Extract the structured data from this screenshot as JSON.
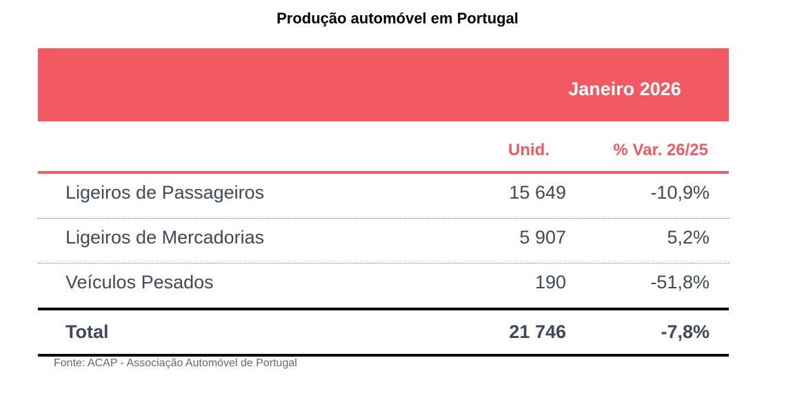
{
  "chart_data": {
    "type": "table",
    "title": "Produção automóvel em Portugal",
    "period": "Janeiro 2026",
    "columns": [
      "Unid.",
      "% Var. 26/25"
    ],
    "rows": [
      {
        "label": "Ligeiros de Passageiros",
        "unid": "15 649",
        "var": "-10,9%"
      },
      {
        "label": "Ligeiros de Mercadorias",
        "unid": "5 907",
        "var": "5,2%"
      },
      {
        "label": "Veículos Pesados",
        "unid": "190",
        "var": "-51,8%"
      }
    ],
    "total": {
      "label": "Total",
      "unid": "21 746",
      "var": "-7,8%"
    },
    "source": "Fonte: ACAP - Associação Automóvel de Portugal",
    "accent_color": "#f15a62",
    "text_color": "#3d4a5c"
  }
}
